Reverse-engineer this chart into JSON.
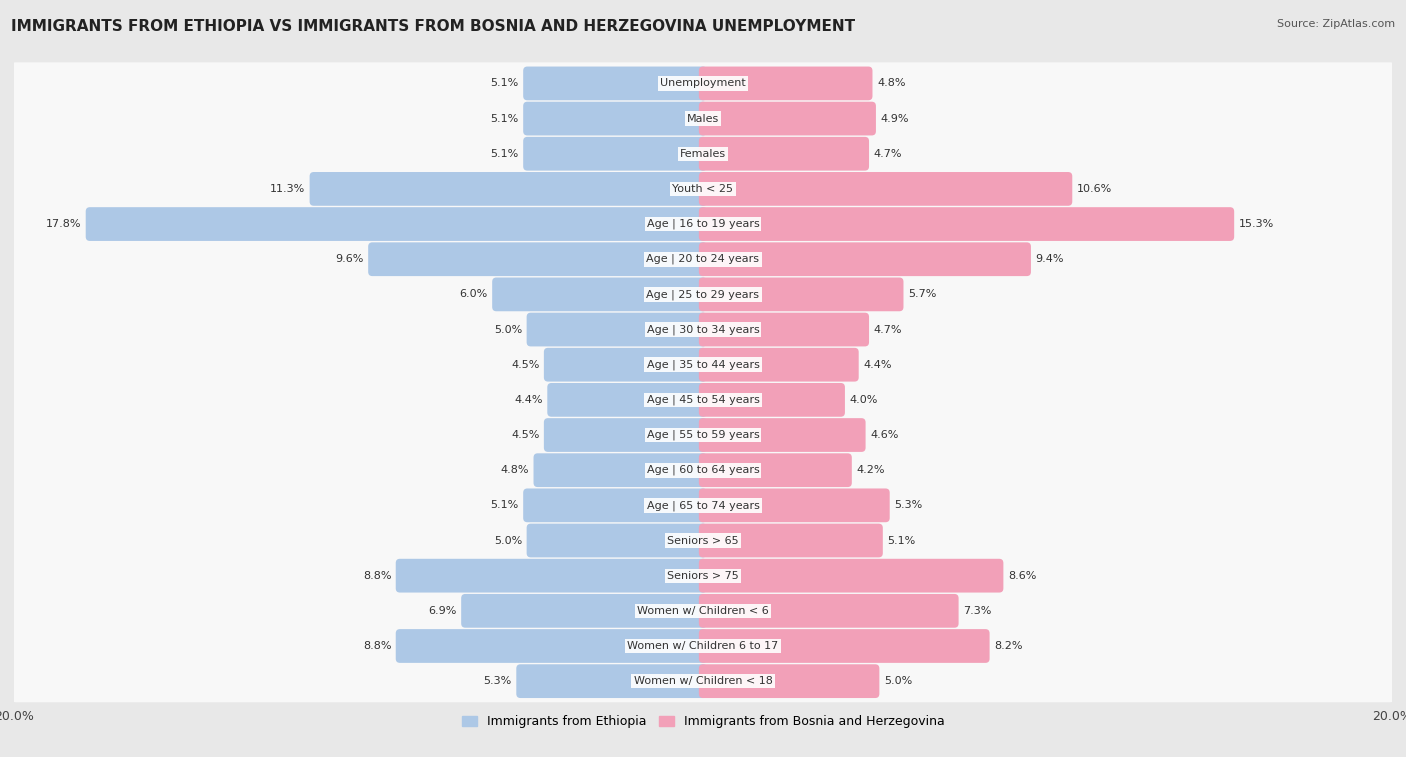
{
  "title": "IMMIGRANTS FROM ETHIOPIA VS IMMIGRANTS FROM BOSNIA AND HERZEGOVINA UNEMPLOYMENT",
  "source": "Source: ZipAtlas.com",
  "categories": [
    "Unemployment",
    "Males",
    "Females",
    "Youth < 25",
    "Age | 16 to 19 years",
    "Age | 20 to 24 years",
    "Age | 25 to 29 years",
    "Age | 30 to 34 years",
    "Age | 35 to 44 years",
    "Age | 45 to 54 years",
    "Age | 55 to 59 years",
    "Age | 60 to 64 years",
    "Age | 65 to 74 years",
    "Seniors > 65",
    "Seniors > 75",
    "Women w/ Children < 6",
    "Women w/ Children 6 to 17",
    "Women w/ Children < 18"
  ],
  "ethiopia": [
    5.1,
    5.1,
    5.1,
    11.3,
    17.8,
    9.6,
    6.0,
    5.0,
    4.5,
    4.4,
    4.5,
    4.8,
    5.1,
    5.0,
    8.8,
    6.9,
    8.8,
    5.3
  ],
  "bosnia": [
    4.8,
    4.9,
    4.7,
    10.6,
    15.3,
    9.4,
    5.7,
    4.7,
    4.4,
    4.0,
    4.6,
    4.2,
    5.3,
    5.1,
    8.6,
    7.3,
    8.2,
    5.0
  ],
  "ethiopia_color": "#adc8e6",
  "bosnia_color": "#f2a0b8",
  "background_color": "#e8e8e8",
  "row_bg_color": "#f8f8f8",
  "axis_max": 20.0,
  "label_ethiopia": "Immigrants from Ethiopia",
  "label_bosnia": "Immigrants from Bosnia and Herzegovina",
  "title_fontsize": 11,
  "source_fontsize": 8,
  "label_fontsize": 8,
  "value_fontsize": 8,
  "legend_fontsize": 9
}
